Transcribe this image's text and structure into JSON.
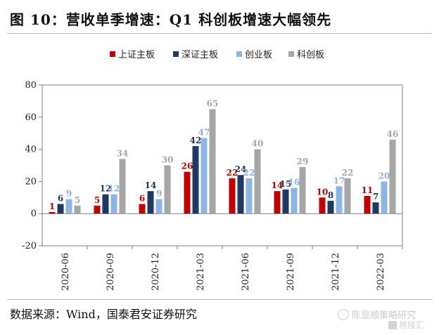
{
  "header": {
    "title": "图 10：营收单季增速：Q1 科创板增速大幅领先"
  },
  "footer": {
    "source": "数据来源：Wind，国泰君安证券研究",
    "watermark": "陈显顺策略研究",
    "watermark2": "格隆汇"
  },
  "colors": {
    "上证主板": "#c00000",
    "深证主板": "#1f3864",
    "创业板": "#8db4e2",
    "科创板": "#a6a6a6"
  },
  "chart_data": {
    "type": "bar",
    "categories": [
      "2020-06",
      "2020-09",
      "2020-12",
      "2021-03",
      "2021-06",
      "2021-09",
      "2021-12",
      "2022-03"
    ],
    "series": [
      {
        "name": "上证主板",
        "values": [
          1,
          5,
          6,
          26,
          22,
          14,
          10,
          11
        ],
        "color": "#c00000"
      },
      {
        "name": "深证主板",
        "values": [
          6,
          12,
          14,
          42,
          24,
          15,
          8,
          7
        ],
        "color": "#1f3864"
      },
      {
        "name": "创业板",
        "values": [
          9,
          12,
          9,
          47,
          22,
          16,
          17,
          20
        ],
        "color": "#8db4e2"
      },
      {
        "name": "科创板",
        "values": [
          5,
          34,
          30,
          65,
          40,
          29,
          22,
          46
        ],
        "color": "#a6a6a6"
      }
    ],
    "ylim": [
      -20,
      80
    ],
    "yticks": [
      -20,
      0,
      20,
      40,
      60,
      80
    ],
    "legend_position": "top-center",
    "grid": false
  }
}
